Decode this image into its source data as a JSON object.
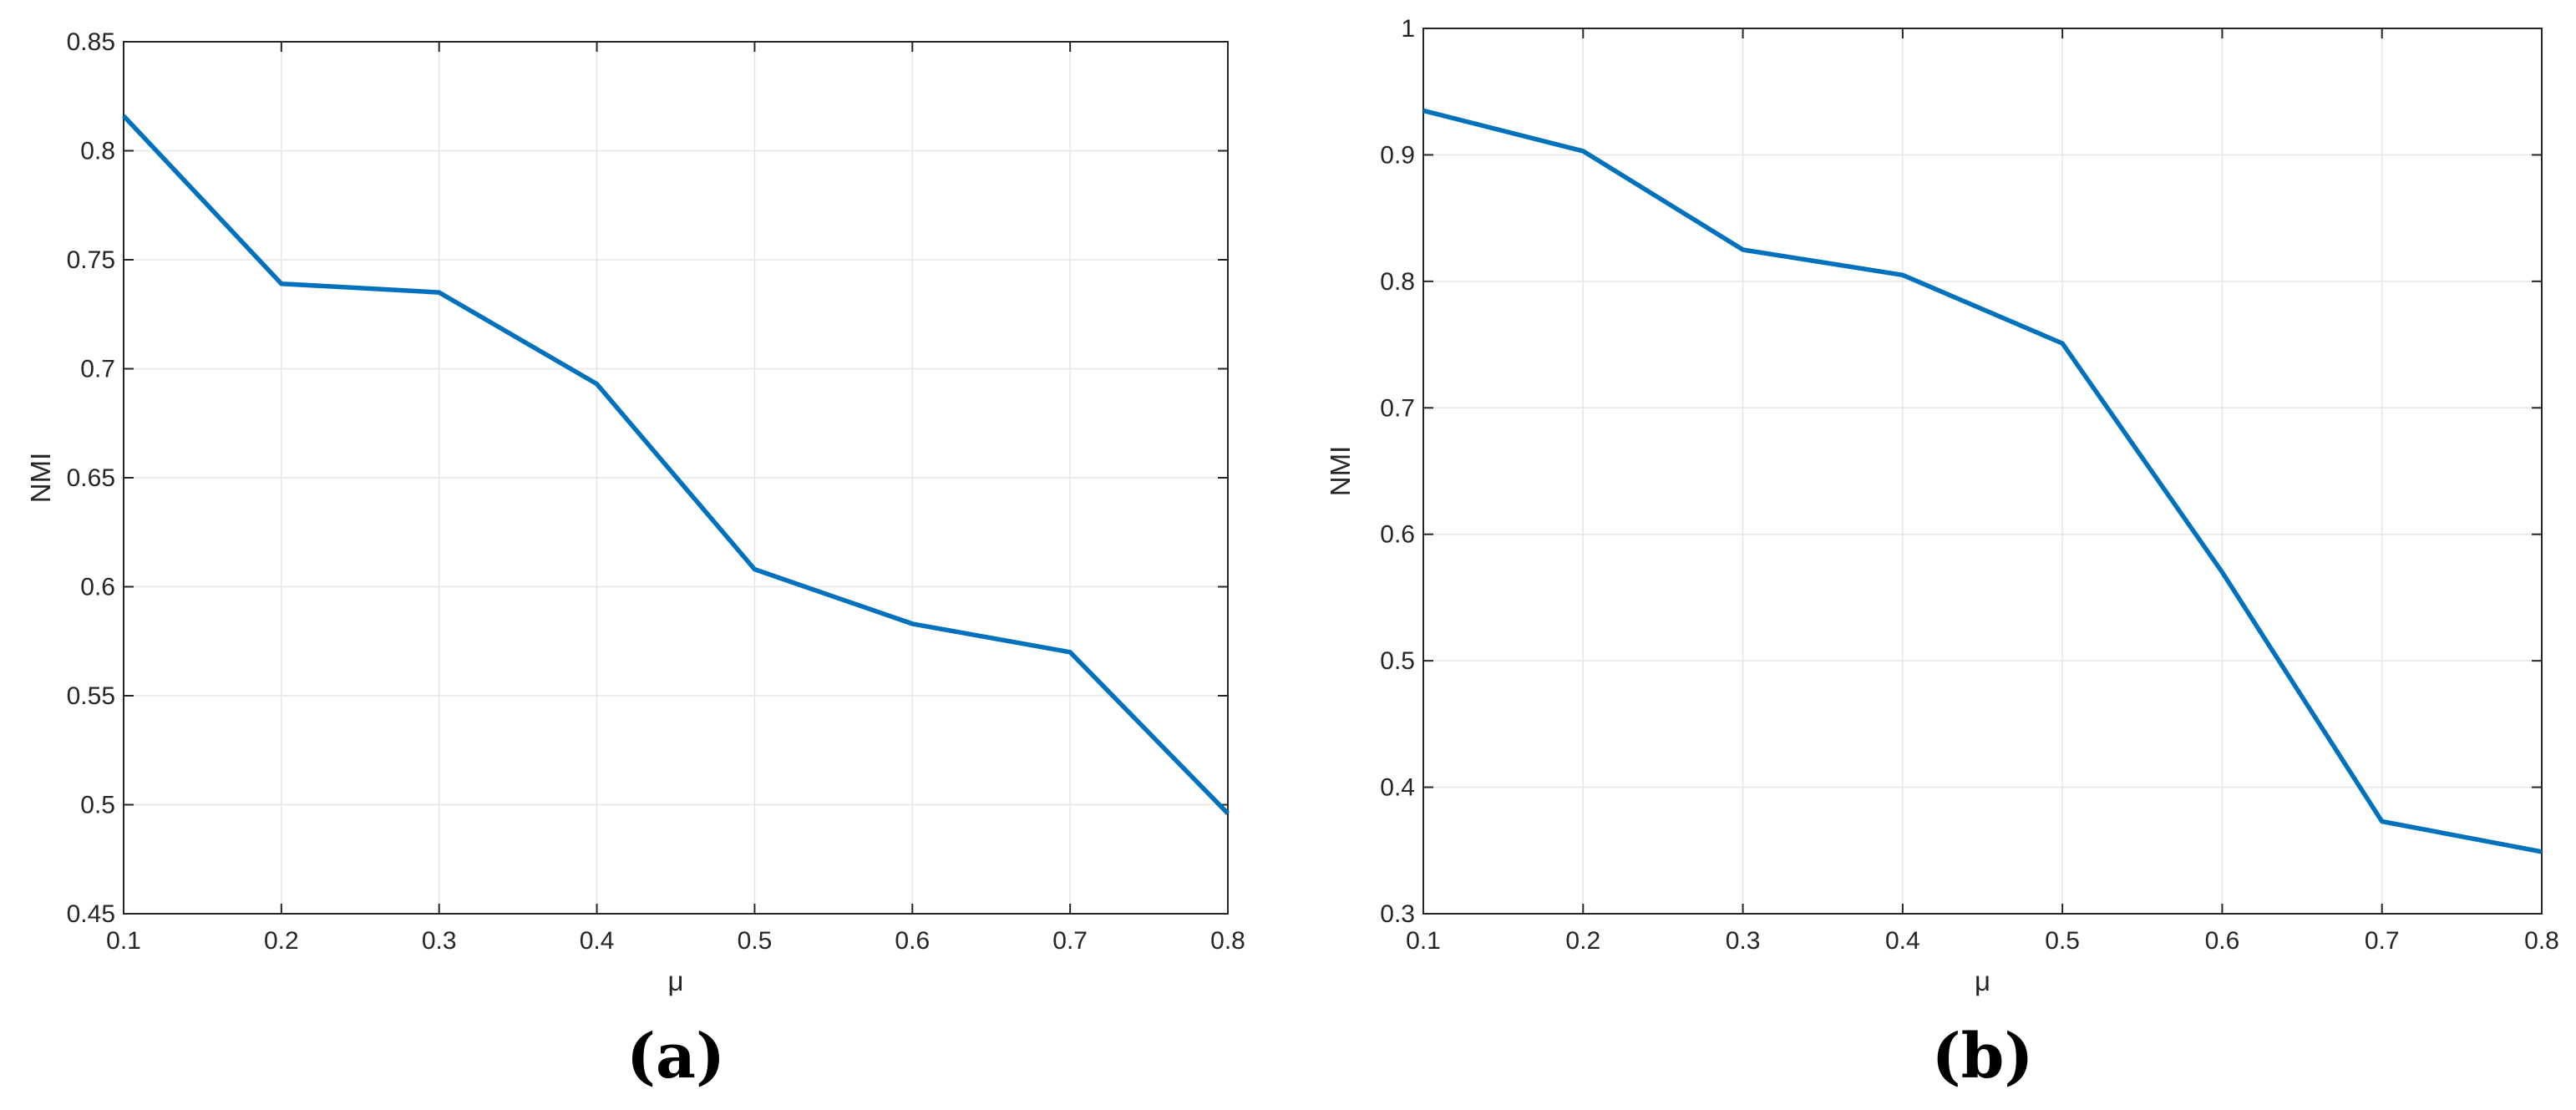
{
  "chart_data": [
    {
      "type": "line",
      "panel_label": "(a)",
      "xlabel": "μ",
      "ylabel": "NMI",
      "xlim": [
        0.1,
        0.8
      ],
      "ylim": [
        0.45,
        0.85
      ],
      "x_ticks": [
        "0.1",
        "0.2",
        "0.3",
        "0.4",
        "0.5",
        "0.6",
        "0.7",
        "0.8"
      ],
      "y_ticks": [
        "0.45",
        "0.5",
        "0.55",
        "0.6",
        "0.65",
        "0.7",
        "0.75",
        "0.8",
        "0.85"
      ],
      "grid": true,
      "line_color": "#0072BD",
      "series": [
        {
          "x": [
            0.1,
            0.2,
            0.3,
            0.4,
            0.5,
            0.6,
            0.7,
            0.8
          ],
          "values": [
            0.816,
            0.739,
            0.735,
            0.693,
            0.608,
            0.583,
            0.57,
            0.496
          ]
        }
      ]
    },
    {
      "type": "line",
      "panel_label": "(b)",
      "xlabel": "μ",
      "ylabel": "NMI",
      "xlim": [
        0.1,
        0.8
      ],
      "ylim": [
        0.3,
        1.0
      ],
      "x_ticks": [
        "0.1",
        "0.2",
        "0.3",
        "0.4",
        "0.5",
        "0.6",
        "0.7",
        "0.8"
      ],
      "y_ticks": [
        "0.3",
        "0.4",
        "0.5",
        "0.6",
        "0.7",
        "0.8",
        "0.9",
        "1"
      ],
      "grid": true,
      "line_color": "#0072BD",
      "series": [
        {
          "x": [
            0.1,
            0.2,
            0.3,
            0.4,
            0.5,
            0.6,
            0.7,
            0.8
          ],
          "values": [
            0.935,
            0.903,
            0.825,
            0.805,
            0.751,
            0.57,
            0.373,
            0.349
          ]
        }
      ]
    }
  ]
}
